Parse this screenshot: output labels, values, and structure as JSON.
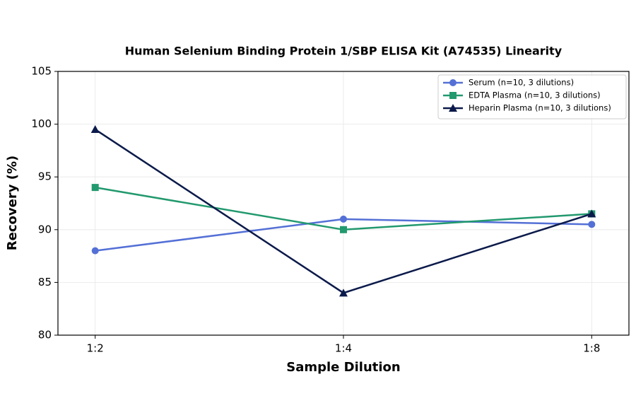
{
  "chart_data": {
    "type": "line",
    "title": "Human Selenium Binding Protein 1/SBP ELISA Kit (A74535) Linearity",
    "x_label": "Sample Dilution",
    "y_label": "Recovery (%)",
    "categories": [
      "1:2",
      "1:4",
      "1:8"
    ],
    "series": [
      {
        "name": "Serum (n=10, 3 dilutions)",
        "color": "#5470d6",
        "marker": "circle",
        "values": [
          88,
          91,
          90.5
        ]
      },
      {
        "name": "EDTA Plasma (n=10, 3 dilutions)",
        "color": "#22996e",
        "marker": "square",
        "values": [
          94,
          90,
          91.5
        ]
      },
      {
        "name": "Heparin Plasma (n=10, 3 dilutions)",
        "color": "#0b1a4a",
        "marker": "triangle",
        "values": [
          99.5,
          84,
          91.5
        ]
      }
    ],
    "ylim": [
      80,
      105
    ],
    "yticks": [
      80,
      85,
      90,
      95,
      100,
      105
    ],
    "grid": true,
    "legend": "upper right"
  }
}
